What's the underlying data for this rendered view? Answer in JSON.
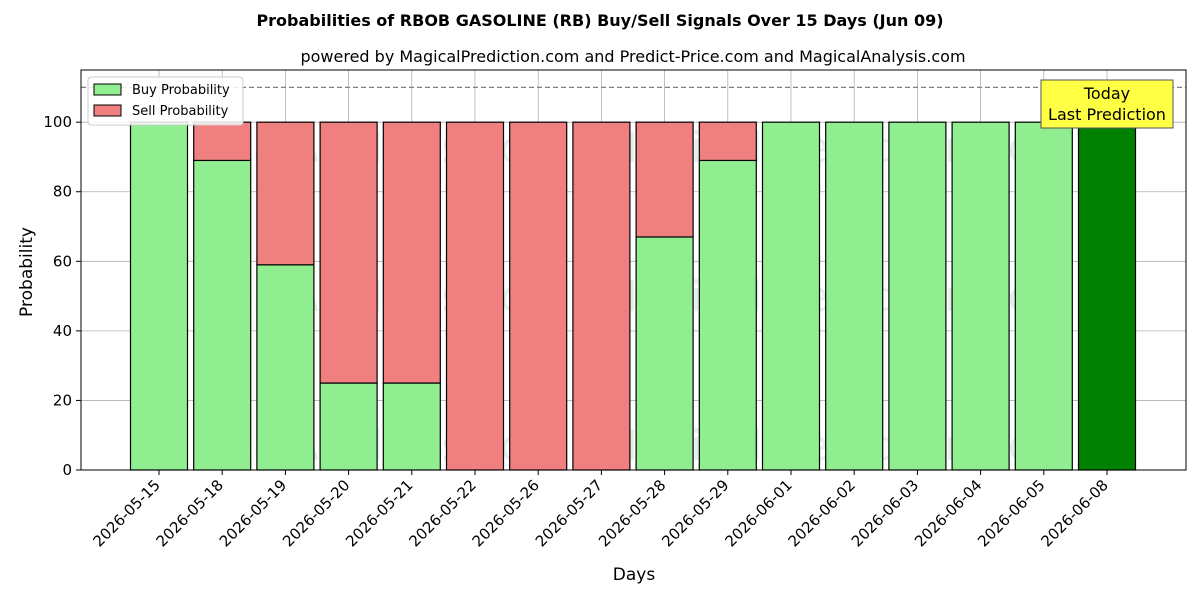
{
  "chart_data": {
    "type": "bar",
    "stacked": true,
    "title": "Probabilities of RBOB GASOLINE (RB) Buy/Sell Signals Over 15 Days (Jun 09)",
    "subtitle": "powered by MagicalPrediction.com and Predict-Price.com and MagicalAnalysis.com",
    "xlabel": "Days",
    "ylabel": "Probability",
    "ylim": [
      0,
      115
    ],
    "yticks": [
      0,
      20,
      40,
      60,
      80,
      100
    ],
    "reference_line": 110,
    "grid": true,
    "legend_position": "top-left",
    "categories": [
      "2026-05-15",
      "2026-05-18",
      "2026-05-19",
      "2026-05-20",
      "2026-05-21",
      "2026-05-22",
      "2026-05-26",
      "2026-05-27",
      "2026-05-28",
      "2026-05-29",
      "2026-06-01",
      "2026-06-02",
      "2026-06-03",
      "2026-06-04",
      "2026-06-05",
      "2026-06-08"
    ],
    "series": [
      {
        "name": "Buy Probability",
        "color": "#90ee90",
        "values": [
          100,
          89,
          59,
          25,
          25,
          0,
          0,
          0,
          67,
          89,
          100,
          100,
          100,
          100,
          100,
          100
        ]
      },
      {
        "name": "Sell Probability",
        "color": "#f08080",
        "values": [
          0,
          11,
          41,
          75,
          75,
          100,
          100,
          100,
          33,
          11,
          0,
          0,
          0,
          0,
          0,
          0
        ]
      }
    ],
    "highlight": {
      "index": 15,
      "color": "#008000"
    },
    "annotation": {
      "line1": "Today",
      "line2": "Last Prediction",
      "color": "#ffff44"
    },
    "watermarks": [
      "MagicalAnalysis.com",
      "MagicalPrediction.com"
    ]
  }
}
